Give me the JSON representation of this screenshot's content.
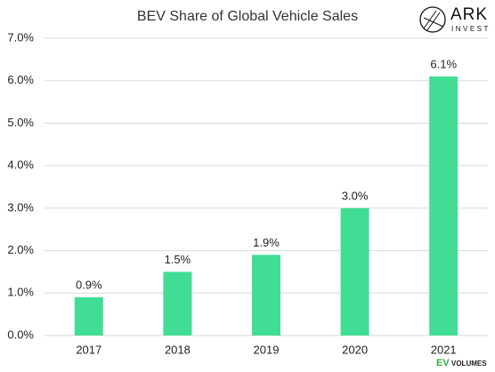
{
  "chart_data": {
    "type": "bar",
    "title": "BEV Share of Global Vehicle Sales",
    "categories": [
      "2017",
      "2018",
      "2019",
      "2020",
      "2021"
    ],
    "values": [
      0.9,
      1.5,
      1.9,
      3.0,
      6.1
    ],
    "value_labels": [
      "0.9%",
      "1.5%",
      "1.9%",
      "3.0%",
      "6.1%"
    ],
    "color": "#42dd95",
    "ylim": [
      0,
      7
    ],
    "yticks": [
      {
        "value": 0,
        "label": "0.0%"
      },
      {
        "value": 1,
        "label": "1.0%"
      },
      {
        "value": 2,
        "label": "2.0%"
      },
      {
        "value": 3,
        "label": "3.0%"
      },
      {
        "value": 4,
        "label": "4.0%"
      },
      {
        "value": 5,
        "label": "5.0%"
      },
      {
        "value": 6,
        "label": "6.0%"
      },
      {
        "value": 7,
        "label": "7.0%"
      }
    ],
    "grid": true,
    "annotations": [
      "ARK",
      "INVEST",
      "EV",
      "VOLUMES"
    ]
  }
}
